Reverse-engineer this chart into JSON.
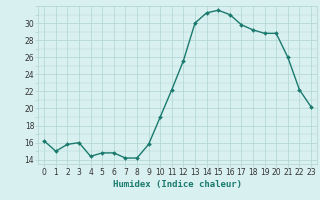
{
  "x": [
    0,
    1,
    2,
    3,
    4,
    5,
    6,
    7,
    8,
    9,
    10,
    11,
    12,
    13,
    14,
    15,
    16,
    17,
    18,
    19,
    20,
    21,
    22,
    23
  ],
  "y": [
    16.2,
    15.0,
    15.8,
    16.0,
    14.4,
    14.8,
    14.8,
    14.2,
    14.2,
    15.8,
    19.0,
    22.2,
    25.6,
    30.0,
    31.2,
    31.5,
    31.0,
    29.8,
    29.2,
    28.8,
    28.8,
    26.0,
    22.2,
    20.2
  ],
  "line_color": "#1a7a6e",
  "marker_color": "#1a7a6e",
  "bg_color": "#d9f0f0",
  "grid_color": "#b0d4d4",
  "xlabel": "Humidex (Indice chaleur)",
  "ylim": [
    13.5,
    32.0
  ],
  "xlim": [
    -0.5,
    23.5
  ],
  "yticks": [
    14,
    16,
    18,
    20,
    22,
    24,
    26,
    28,
    30
  ],
  "xticks": [
    0,
    1,
    2,
    3,
    4,
    5,
    6,
    7,
    8,
    9,
    10,
    11,
    12,
    13,
    14,
    15,
    16,
    17,
    18,
    19,
    20,
    21,
    22,
    23
  ],
  "tick_label_fontsize": 5.5,
  "xlabel_fontsize": 6.5,
  "line_width": 1.0,
  "marker_size": 2.0
}
